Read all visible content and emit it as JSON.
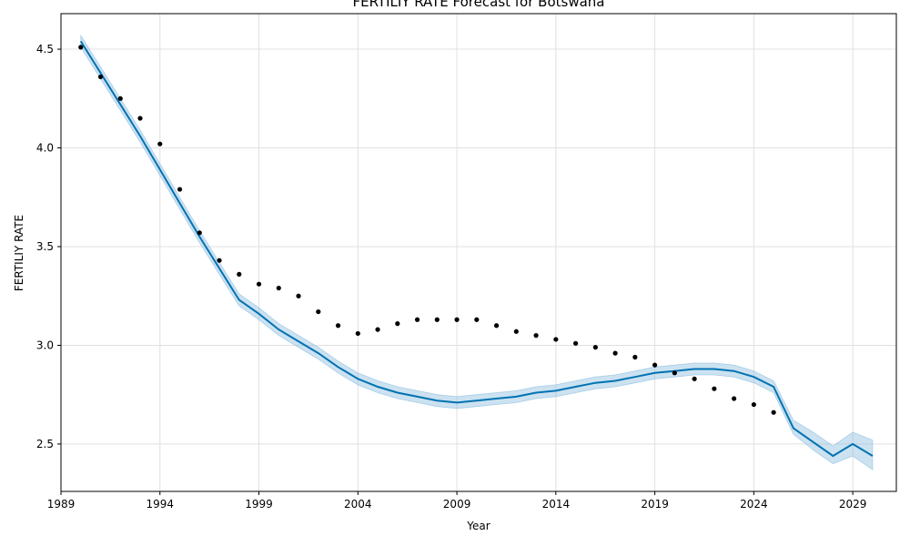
{
  "chart_data": {
    "type": "line",
    "title": "FERTILIY RATE Forecast for Botswana",
    "xlabel": "Year",
    "ylabel": "FERTILIY RATE",
    "xlim": [
      1989,
      2031.2
    ],
    "ylim": [
      2.26,
      4.68
    ],
    "x_ticks": [
      1989,
      1994,
      1999,
      2004,
      2009,
      2014,
      2019,
      2024,
      2029
    ],
    "y_ticks": [
      2.5,
      3.0,
      3.5,
      4.0,
      4.5
    ],
    "y_tick_labels": [
      "2.5",
      "3.0",
      "3.5",
      "4.0",
      "4.5"
    ],
    "grid": true,
    "colors": {
      "forecast": "#0072B2",
      "band": "#8fbfe0",
      "actual": "#000000",
      "grid": "#e0e0e0"
    },
    "series": [
      {
        "name": "actual",
        "x": [
          1990,
          1991,
          1992,
          1993,
          1994,
          1995,
          1996,
          1997,
          1998,
          1999,
          2000,
          2001,
          2002,
          2003,
          2004,
          2005,
          2006,
          2007,
          2008,
          2009,
          2010,
          2011,
          2012,
          2013,
          2014,
          2015,
          2016,
          2017,
          2018,
          2019,
          2020,
          2021,
          2022,
          2023,
          2024,
          2025
        ],
        "values": [
          4.51,
          4.36,
          4.25,
          4.15,
          4.02,
          3.79,
          3.57,
          3.43,
          3.36,
          3.31,
          3.29,
          3.25,
          3.17,
          3.1,
          3.06,
          3.08,
          3.11,
          3.13,
          3.13,
          3.13,
          3.13,
          3.1,
          3.07,
          3.05,
          3.03,
          3.01,
          2.99,
          2.96,
          2.94,
          2.9,
          2.86,
          2.83,
          2.78,
          2.73,
          2.7,
          2.66
        ]
      },
      {
        "name": "forecast",
        "x": [
          1990,
          1991,
          1992,
          1993,
          1994,
          1995,
          1996,
          1997,
          1998,
          1999,
          2000,
          2001,
          2002,
          2003,
          2004,
          2005,
          2006,
          2007,
          2008,
          2009,
          2010,
          2011,
          2012,
          2013,
          2014,
          2015,
          2016,
          2017,
          2018,
          2019,
          2020,
          2021,
          2022,
          2023,
          2024,
          2025,
          2026,
          2027,
          2028,
          2029,
          2030
        ],
        "values": [
          4.54,
          4.38,
          4.22,
          4.06,
          3.89,
          3.72,
          3.55,
          3.39,
          3.23,
          3.16,
          3.08,
          3.02,
          2.96,
          2.89,
          2.83,
          2.79,
          2.76,
          2.74,
          2.72,
          2.71,
          2.72,
          2.73,
          2.74,
          2.76,
          2.77,
          2.79,
          2.81,
          2.82,
          2.84,
          2.86,
          2.87,
          2.88,
          2.88,
          2.87,
          2.84,
          2.79,
          2.58,
          2.51,
          2.44,
          2.5,
          2.44
        ],
        "lower": [
          4.51,
          4.35,
          4.19,
          4.03,
          3.86,
          3.69,
          3.52,
          3.36,
          3.2,
          3.13,
          3.05,
          2.99,
          2.93,
          2.86,
          2.8,
          2.76,
          2.73,
          2.71,
          2.69,
          2.68,
          2.69,
          2.7,
          2.71,
          2.73,
          2.74,
          2.76,
          2.78,
          2.79,
          2.81,
          2.83,
          2.84,
          2.85,
          2.85,
          2.84,
          2.81,
          2.76,
          2.55,
          2.47,
          2.4,
          2.44,
          2.37
        ],
        "upper": [
          4.57,
          4.41,
          4.25,
          4.09,
          3.92,
          3.75,
          3.58,
          3.42,
          3.26,
          3.19,
          3.11,
          3.05,
          2.99,
          2.92,
          2.86,
          2.82,
          2.79,
          2.77,
          2.75,
          2.74,
          2.75,
          2.76,
          2.77,
          2.79,
          2.8,
          2.82,
          2.84,
          2.85,
          2.87,
          2.89,
          2.9,
          2.91,
          2.91,
          2.9,
          2.87,
          2.82,
          2.62,
          2.56,
          2.49,
          2.56,
          2.52
        ]
      }
    ]
  }
}
